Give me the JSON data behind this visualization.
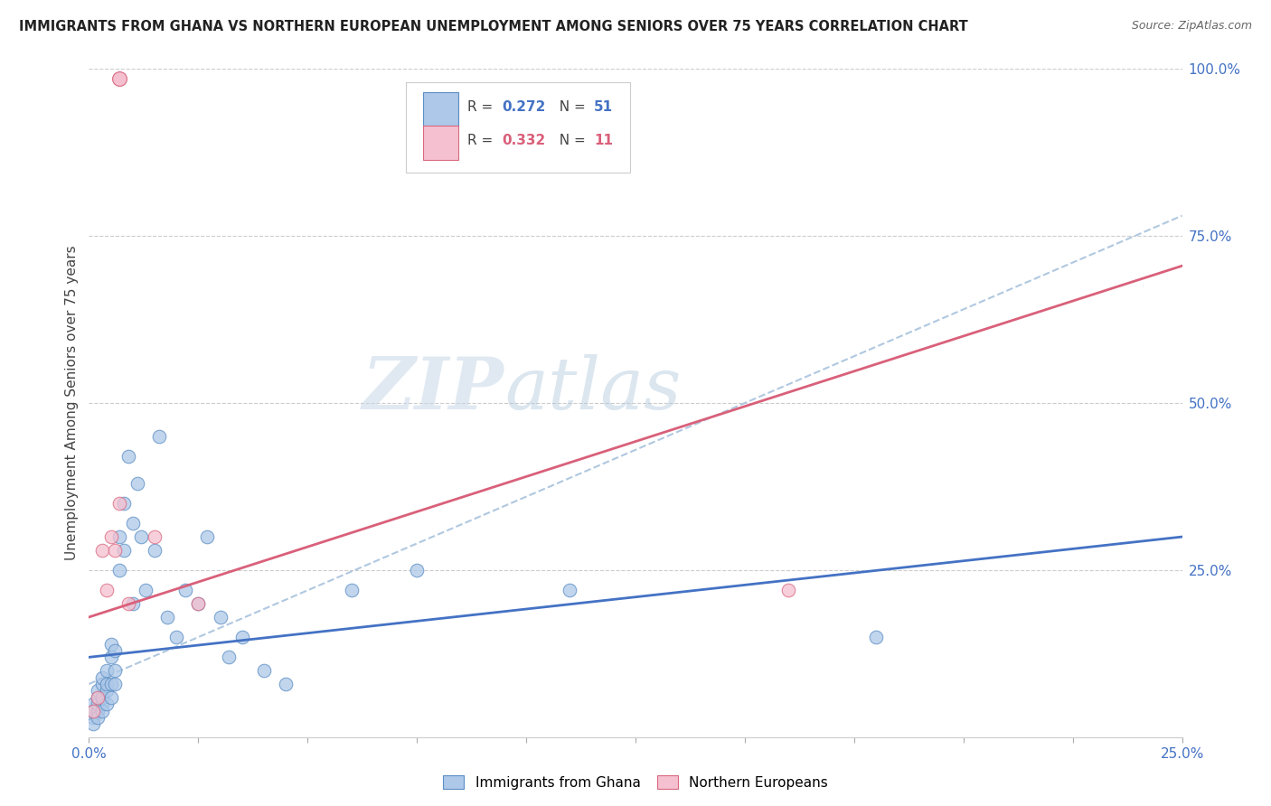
{
  "title": "IMMIGRANTS FROM GHANA VS NORTHERN EUROPEAN UNEMPLOYMENT AMONG SENIORS OVER 75 YEARS CORRELATION CHART",
  "source": "Source: ZipAtlas.com",
  "ylabel": "Unemployment Among Seniors over 75 years",
  "xlim": [
    0.0,
    0.25
  ],
  "ylim": [
    0.0,
    1.0
  ],
  "ytick_right_labels": [
    "100.0%",
    "75.0%",
    "50.0%",
    "25.0%"
  ],
  "ytick_right_values": [
    1.0,
    0.75,
    0.5,
    0.25
  ],
  "ghana_R": 0.272,
  "ghana_N": 51,
  "northern_R": 0.332,
  "northern_N": 11,
  "ghana_color": "#adc8e8",
  "ghana_edge_color": "#5b8ec4",
  "ghana_line_color": "#4472c4",
  "northern_color": "#f5c0cf",
  "northern_edge_color": "#d96880",
  "northern_line_color": "#d9607a",
  "dashed_line_color": "#b0c8e0",
  "background_color": "#ffffff",
  "grid_color": "#cccccc",
  "ghana_points_x": [
    0.001,
    0.001,
    0.001,
    0.001,
    0.002,
    0.002,
    0.002,
    0.002,
    0.002,
    0.003,
    0.003,
    0.003,
    0.003,
    0.003,
    0.004,
    0.004,
    0.004,
    0.004,
    0.005,
    0.005,
    0.005,
    0.005,
    0.006,
    0.006,
    0.006,
    0.007,
    0.007,
    0.008,
    0.008,
    0.009,
    0.01,
    0.01,
    0.011,
    0.012,
    0.013,
    0.015,
    0.016,
    0.018,
    0.02,
    0.022,
    0.025,
    0.027,
    0.03,
    0.032,
    0.035,
    0.04,
    0.045,
    0.06,
    0.075,
    0.11,
    0.18
  ],
  "ghana_points_y": [
    0.03,
    0.02,
    0.05,
    0.04,
    0.06,
    0.04,
    0.03,
    0.07,
    0.05,
    0.08,
    0.05,
    0.04,
    0.06,
    0.09,
    0.07,
    0.1,
    0.05,
    0.08,
    0.12,
    0.08,
    0.06,
    0.14,
    0.1,
    0.13,
    0.08,
    0.3,
    0.25,
    0.35,
    0.28,
    0.42,
    0.32,
    0.2,
    0.38,
    0.3,
    0.22,
    0.28,
    0.45,
    0.18,
    0.15,
    0.22,
    0.2,
    0.3,
    0.18,
    0.12,
    0.15,
    0.1,
    0.08,
    0.22,
    0.25,
    0.22,
    0.15
  ],
  "northern_points_x": [
    0.001,
    0.002,
    0.003,
    0.004,
    0.005,
    0.006,
    0.007,
    0.009,
    0.015,
    0.025,
    0.16
  ],
  "northern_points_y": [
    0.04,
    0.06,
    0.28,
    0.22,
    0.3,
    0.28,
    0.35,
    0.2,
    0.3,
    0.2,
    0.22
  ],
  "watermark_zip": "ZIP",
  "watermark_atlas": "atlas",
  "ghana_trend_intercept": 0.12,
  "ghana_trend_slope": 0.72,
  "northern_trend_intercept": 0.18,
  "northern_trend_slope": 2.1,
  "dashed_trend_intercept": 0.08,
  "dashed_trend_slope": 2.8
}
